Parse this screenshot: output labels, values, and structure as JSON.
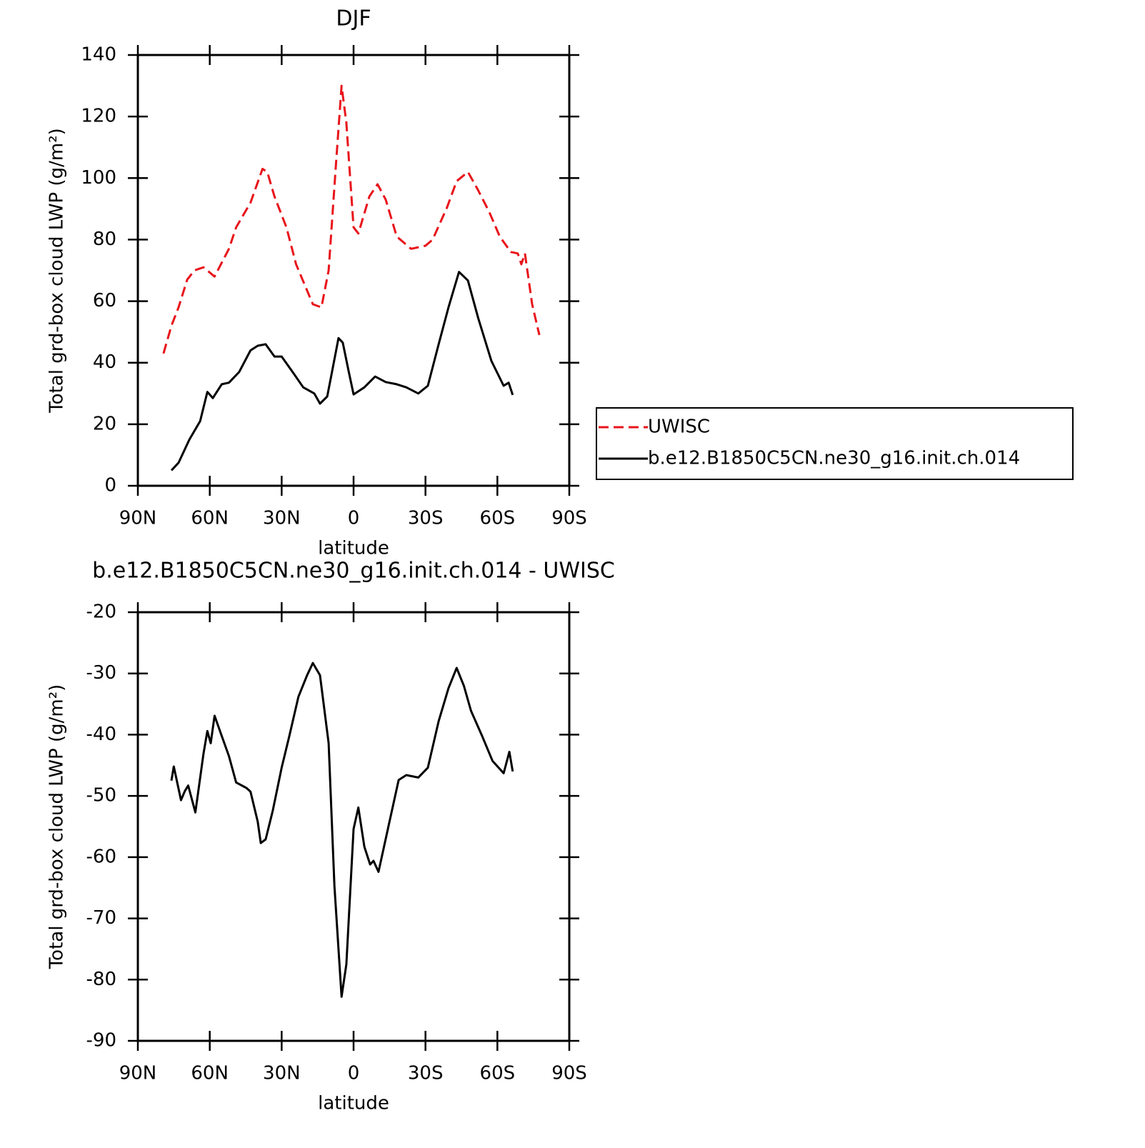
{
  "chart_data": [
    {
      "type": "line",
      "title": "DJF",
      "xlabel": "latitude",
      "ylabel": "Total grd-box cloud LWP (g/m²)",
      "xlim": [
        90,
        -90
      ],
      "xticks": [
        {
          "value": 90,
          "label": "90N"
        },
        {
          "value": 60,
          "label": "60N"
        },
        {
          "value": 30,
          "label": "30N"
        },
        0,
        {
          "value": -30,
          "label": "30S"
        },
        {
          "value": -60,
          "label": "60S"
        },
        {
          "value": -90,
          "label": "90S"
        }
      ],
      "ylim": [
        0,
        140
      ],
      "yticks": [
        0,
        20,
        40,
        60,
        80,
        100,
        120,
        140
      ],
      "legend": "right",
      "series": [
        {
          "name": "UWISC",
          "color": "#e8141b",
          "line_style": "dashed",
          "x": [
            79.3,
            76,
            73,
            69.4,
            66.4,
            62.6,
            58,
            52,
            49,
            43,
            38,
            36,
            33,
            28,
            24,
            17,
            13.4,
            10.4,
            7.4,
            5,
            3,
            0,
            -2,
            -6.6,
            -10,
            -13.4,
            -18,
            -24,
            -30,
            -33,
            -39,
            -43,
            -47.7,
            -52,
            -56.6,
            -61,
            -65.6,
            -68.5,
            -70,
            -71.5,
            -74.5,
            -77.5
          ],
          "values": [
            43,
            52,
            58,
            67,
            70,
            71,
            68,
            77,
            84,
            92,
            103,
            102,
            94,
            84,
            72,
            59,
            58,
            70,
            104,
            130,
            118,
            84,
            82,
            94,
            98,
            93,
            81,
            77,
            78,
            80,
            90.5,
            99,
            102,
            96,
            89,
            81,
            76,
            75.5,
            72,
            75.5,
            59,
            49
          ]
        },
        {
          "name": "b.e12.B1850C5CN.ne30_g16.init.ch.014",
          "color": "#000000",
          "line_style": "solid",
          "x": [
            76,
            73,
            68.5,
            64,
            61,
            58.7,
            55,
            52,
            47.7,
            43,
            40,
            36.7,
            33,
            30,
            25,
            21,
            16.4,
            14,
            11,
            9,
            6.3,
            4.5,
            2,
            0,
            -4.5,
            -9,
            -13.4,
            -18,
            -22,
            -27,
            -31,
            -35.5,
            -39.6,
            -44,
            -47.7,
            -52,
            -57.5,
            -62.6,
            -64.7,
            -66.4
          ],
          "values": [
            5,
            7.5,
            15,
            21,
            30.5,
            28.5,
            33,
            33.5,
            37,
            44,
            45.5,
            46,
            42,
            42,
            36.5,
            32,
            30,
            26.7,
            29,
            37,
            48,
            46.5,
            37,
            29.7,
            32,
            35.5,
            33.7,
            33,
            32,
            30,
            32.5,
            46,
            58,
            69.5,
            66.7,
            54.5,
            40.6,
            32.5,
            33.5,
            29.5
          ]
        }
      ]
    },
    {
      "type": "line",
      "title": "b.e12.B1850C5CN.ne30_g16.init.ch.014 - UWISC",
      "xlabel": "latitude",
      "ylabel": "Total grd-box cloud LWP (g/m²)",
      "xlim": [
        90,
        -90
      ],
      "xticks": [
        {
          "value": 90,
          "label": "90N"
        },
        {
          "value": 60,
          "label": "60N"
        },
        {
          "value": 30,
          "label": "30N"
        },
        0,
        {
          "value": -30,
          "label": "30S"
        },
        {
          "value": -60,
          "label": "60S"
        },
        {
          "value": -90,
          "label": "90S"
        }
      ],
      "ylim": [
        -90,
        -20
      ],
      "yticks": [
        -90,
        -80,
        -70,
        -60,
        -50,
        -40,
        -30,
        -20
      ],
      "color": "#000000",
      "x": [
        76,
        75,
        72,
        70.4,
        69,
        66,
        62.6,
        61,
        59.6,
        58,
        55,
        52,
        49,
        44.7,
        43,
        40,
        38.7,
        36.7,
        33.7,
        30,
        26.8,
        23,
        19.4,
        17,
        14,
        10.4,
        8,
        5,
        3,
        0,
        -2,
        -4.5,
        -6.9,
        -8.3,
        -10.4,
        -15,
        -18.8,
        -22,
        -27,
        -31,
        -35.5,
        -39.6,
        -43,
        -46,
        -49,
        -53.6,
        -58,
        -62.6,
        -65,
        -66.4
      ],
      "values": [
        -47.5,
        -45.2,
        -50.7,
        -49.2,
        -48.3,
        -52.7,
        -43.1,
        -39.4,
        -41.4,
        -36.9,
        -40.2,
        -43.5,
        -47.8,
        -48.7,
        -49.3,
        -54.2,
        -57.7,
        -57.1,
        -52.4,
        -45.4,
        -40.2,
        -33.8,
        -30.3,
        -28.3,
        -30.3,
        -41.4,
        -64.7,
        -82.8,
        -77.5,
        -55.4,
        -51.9,
        -58.3,
        -61.2,
        -60.6,
        -62.4,
        -54.2,
        -47.4,
        -46.6,
        -47,
        -45.4,
        -37.8,
        -32.4,
        -29.1,
        -32,
        -36.1,
        -40.2,
        -44.3,
        -46.3,
        -42.8,
        -46
      ]
    }
  ]
}
